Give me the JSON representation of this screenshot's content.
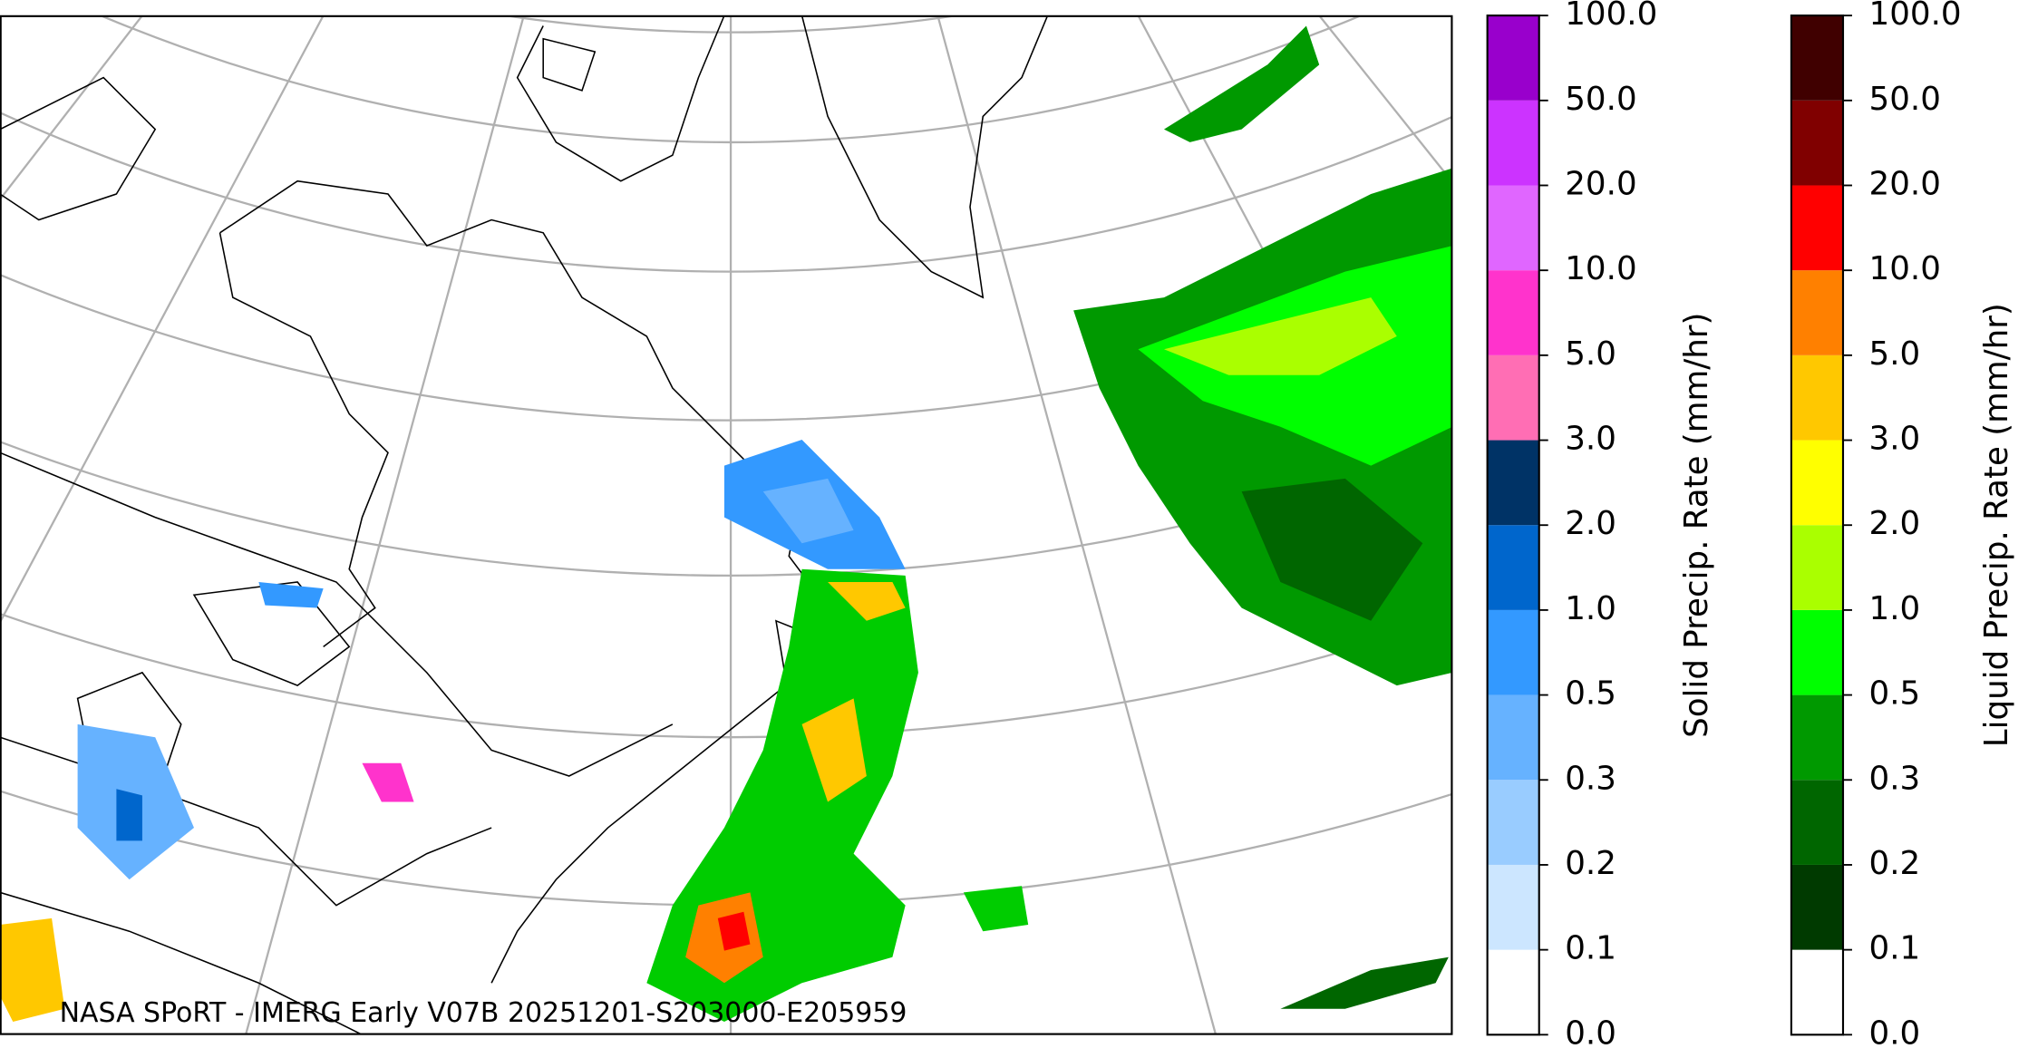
{
  "map": {
    "caption": "NASA SPoRT - IMERG Early V07B 20251201-S203000-E205959"
  },
  "colorbars": [
    {
      "label": "Solid Precip. Rate (mm/hr)",
      "ticks": [
        {
          "value": 0,
          "label": "0.0"
        },
        {
          "value": 0.1,
          "label": "0.1"
        },
        {
          "value": 0.2,
          "label": "0.2"
        },
        {
          "value": 0.3,
          "label": "0.3"
        },
        {
          "value": 0.5,
          "label": "0.5"
        },
        {
          "value": 1,
          "label": "1.0"
        },
        {
          "value": 2,
          "label": "2.0"
        },
        {
          "value": 3,
          "label": "3.0"
        },
        {
          "value": 5,
          "label": "5.0"
        },
        {
          "value": 10,
          "label": "10.0"
        },
        {
          "value": 20,
          "label": "20.0"
        },
        {
          "value": 50,
          "label": "50.0"
        },
        {
          "value": 100,
          "label": "100.0"
        }
      ],
      "colors": [
        "#ffffff",
        "#cce6ff",
        "#99ccff",
        "#66b2ff",
        "#3399ff",
        "#0066cc",
        "#003366",
        "#ff6eb4",
        "#ff33cc",
        "#e066ff",
        "#cc33ff",
        "#9900cc"
      ]
    },
    {
      "label": "Liquid Precip. Rate (mm/hr)",
      "ticks": [
        {
          "value": 0,
          "label": "0.0"
        },
        {
          "value": 0.1,
          "label": "0.1"
        },
        {
          "value": 0.2,
          "label": "0.2"
        },
        {
          "value": 0.3,
          "label": "0.3"
        },
        {
          "value": 0.5,
          "label": "0.5"
        },
        {
          "value": 1,
          "label": "1.0"
        },
        {
          "value": 2,
          "label": "2.0"
        },
        {
          "value": 3,
          "label": "3.0"
        },
        {
          "value": 5,
          "label": "5.0"
        },
        {
          "value": 10,
          "label": "10.0"
        },
        {
          "value": 20,
          "label": "20.0"
        },
        {
          "value": 50,
          "label": "50.0"
        },
        {
          "value": 100,
          "label": "100.0"
        }
      ],
      "colors": [
        "#ffffff",
        "#003a00",
        "#006600",
        "#009900",
        "#00ff00",
        "#aaff00",
        "#ffff00",
        "#ffc800",
        "#ff8000",
        "#ff0000",
        "#800000",
        "#400000"
      ]
    }
  ]
}
